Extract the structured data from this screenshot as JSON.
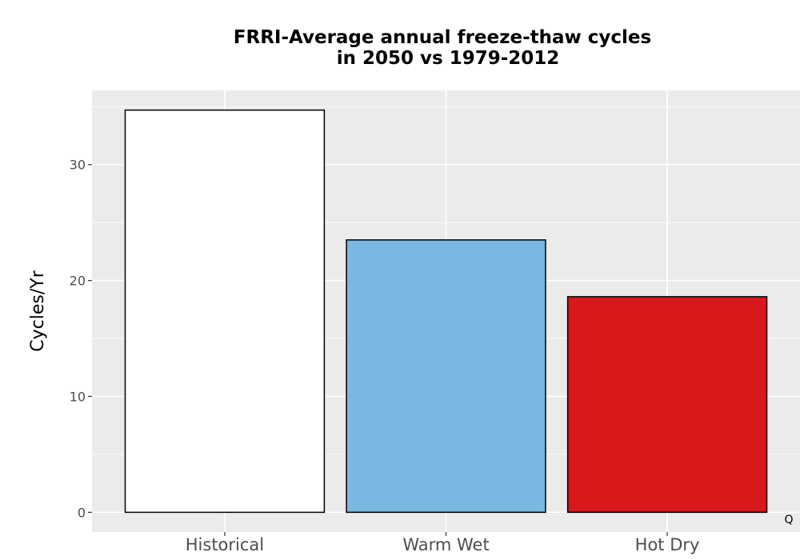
{
  "chart_data": {
    "type": "bar",
    "title_lines": [
      "FRRI-Average annual freeze-thaw cycles",
      "in 2050 vs 1979-2012"
    ],
    "xlabel": "",
    "ylabel": "Cycles/Yr",
    "categories": [
      "Historical",
      "Warm Wet",
      "Hot Dry"
    ],
    "values": [
      34.7,
      23.5,
      18.6
    ],
    "bar_colors": [
      "#ffffff",
      "#79b8e0",
      "#d7191c"
    ],
    "bar_outline": "#000000",
    "ylim": [
      -1.7,
      36.4
    ],
    "yticks": [
      0,
      10,
      20,
      30
    ],
    "ytick_labels": [
      "0",
      "10",
      "20",
      "30"
    ],
    "grid": true,
    "panel_background": "#ebebeb",
    "corner_label": "Q"
  }
}
